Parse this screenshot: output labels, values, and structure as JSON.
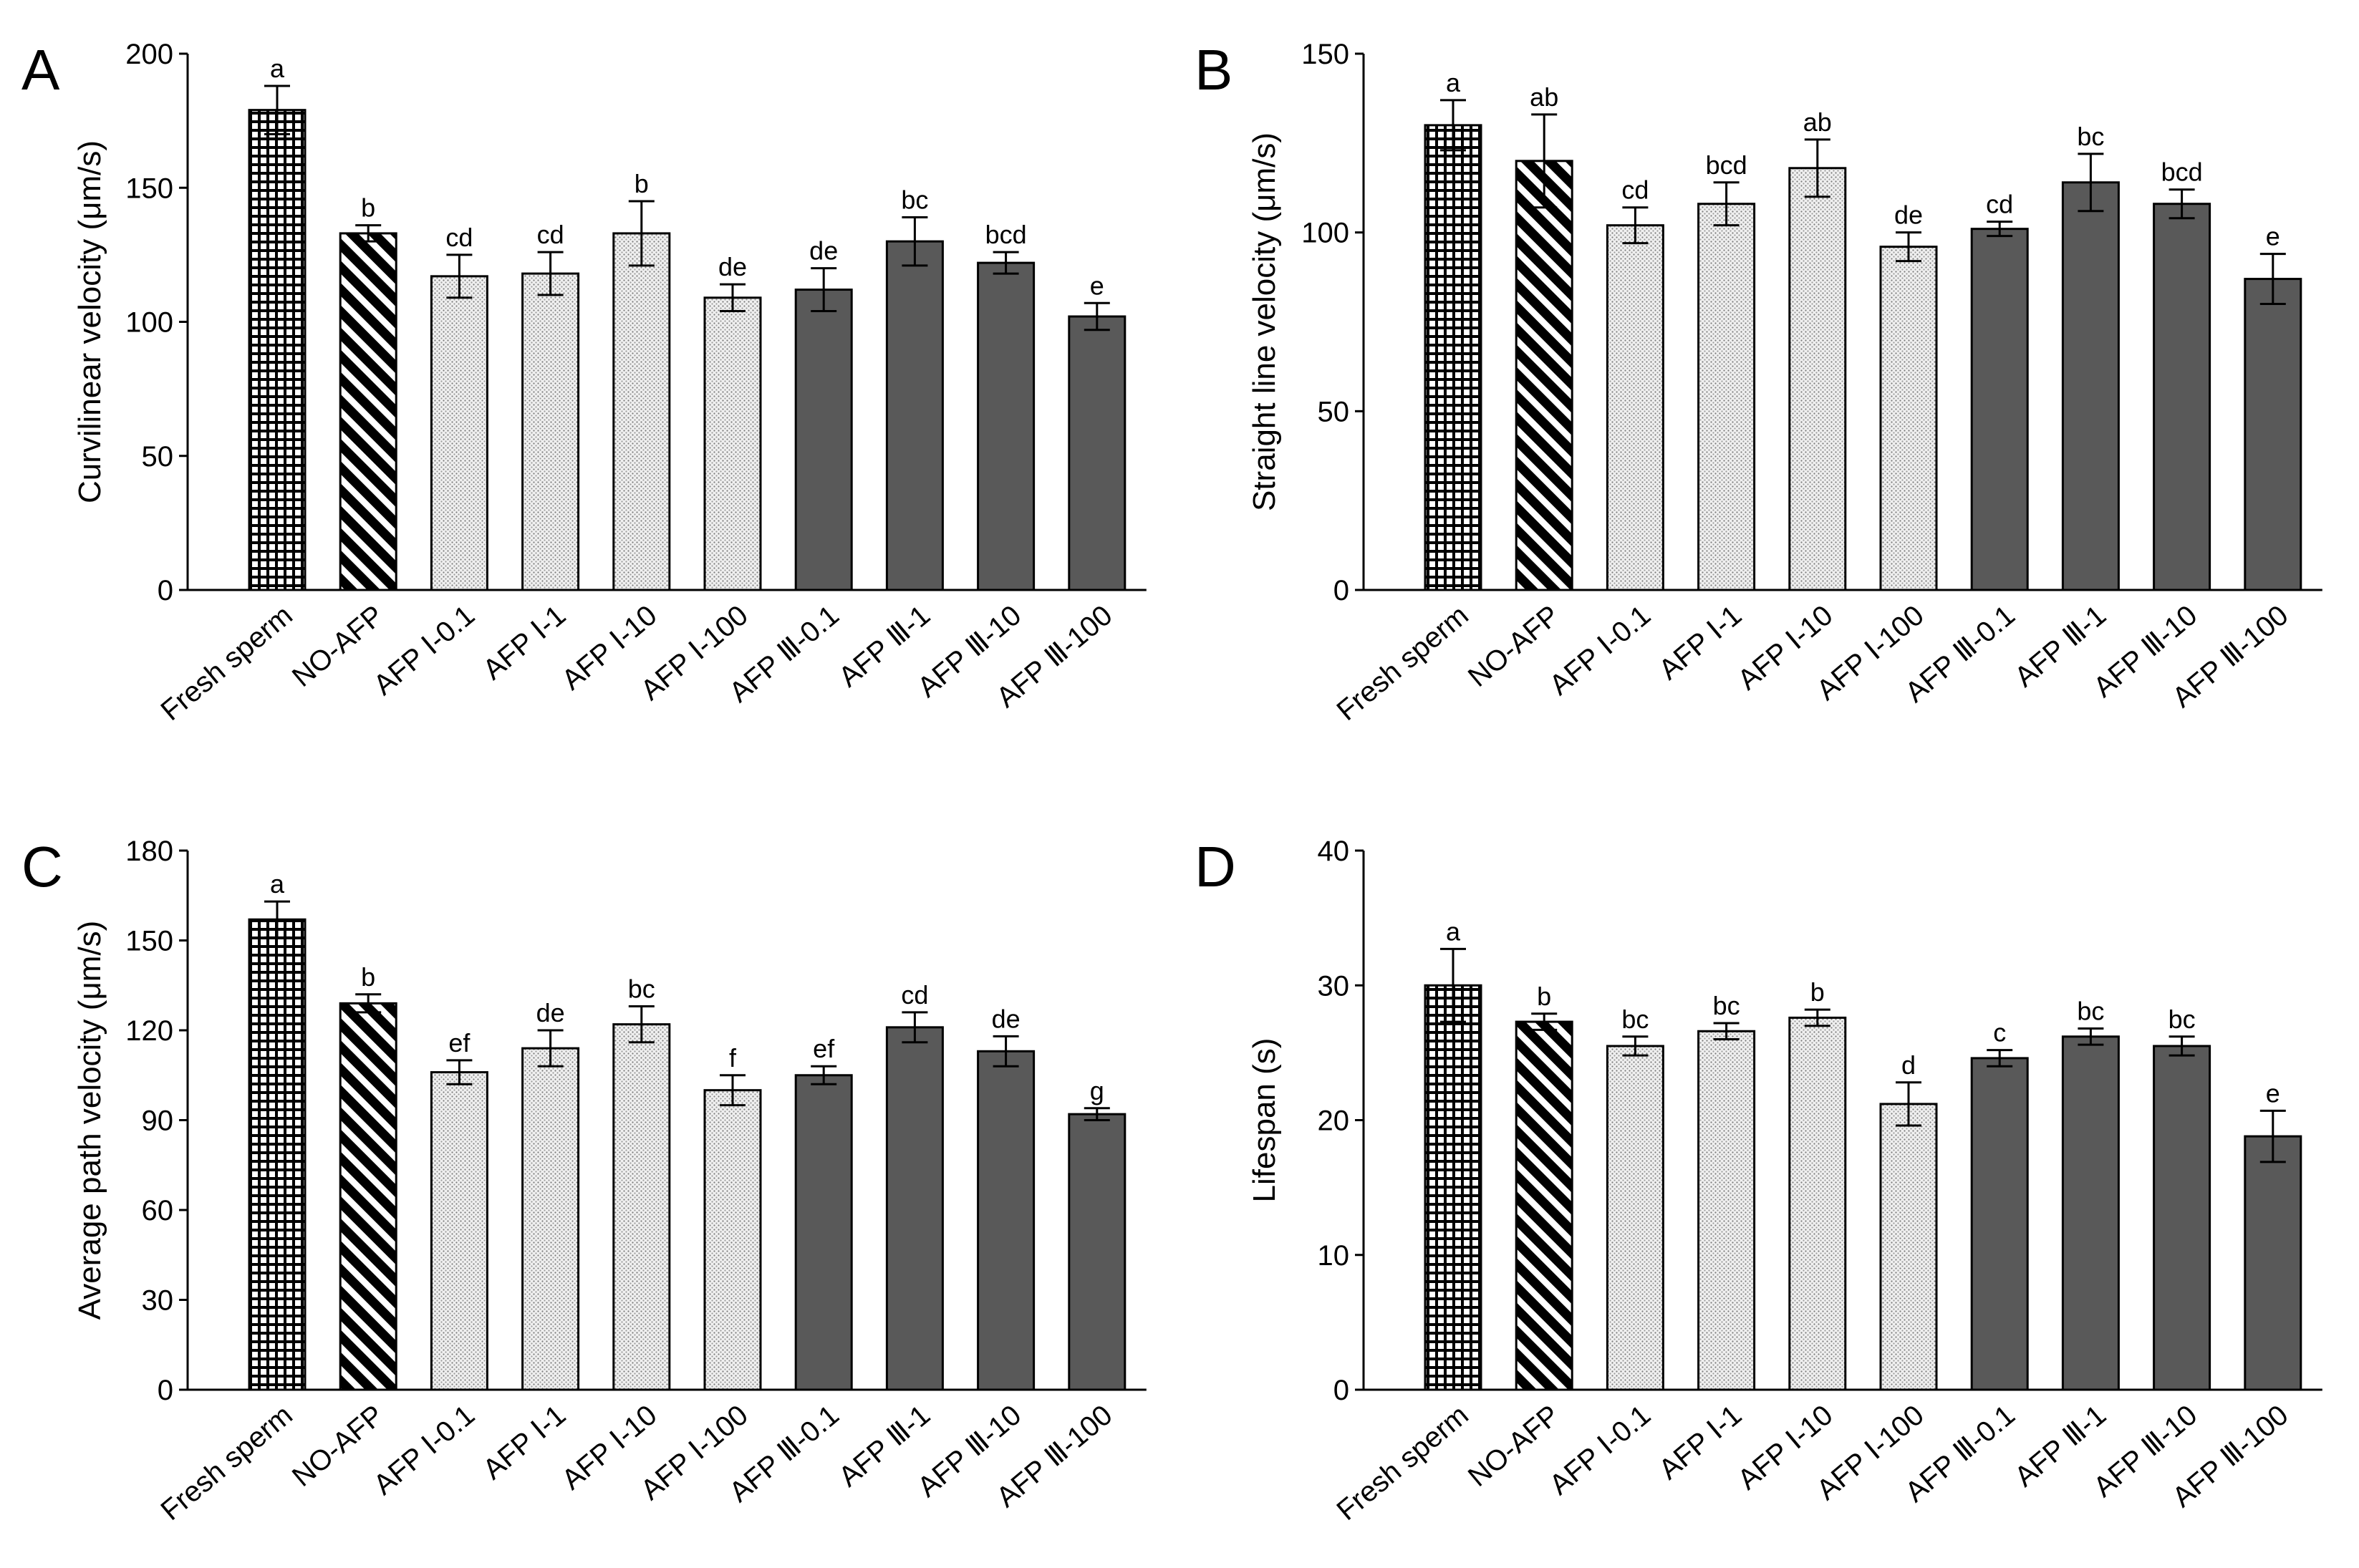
{
  "figure": {
    "description_free": true
  },
  "chart_data": [
    {
      "panel": "A",
      "type": "bar",
      "ylabel": "Curvilinear velocity (μm/s)",
      "ylim": [
        0,
        200
      ],
      "yticks": [
        0,
        50,
        100,
        150,
        200
      ],
      "categories": [
        "Fresh sperm",
        "NO-AFP",
        "AFP Ⅰ-0.1",
        "AFP Ⅰ-1",
        "AFP Ⅰ-10",
        "AFP Ⅰ-100",
        "AFP Ⅲ-0.1",
        "AFP Ⅲ-1",
        "AFP Ⅲ-10",
        "AFP Ⅲ-100"
      ],
      "values": [
        179,
        133,
        117,
        118,
        133,
        109,
        112,
        130,
        122,
        102
      ],
      "errors": [
        9,
        3,
        8,
        8,
        12,
        5,
        8,
        9,
        4,
        5
      ],
      "letters": [
        "a",
        "b",
        "cd",
        "cd",
        "b",
        "de",
        "de",
        "bc",
        "bcd",
        "e"
      ]
    },
    {
      "panel": "B",
      "type": "bar",
      "ylabel": "Straight line velocity (μm/s)",
      "ylim": [
        0,
        150
      ],
      "yticks": [
        0,
        50,
        100,
        150
      ],
      "categories": [
        "Fresh sperm",
        "NO-AFP",
        "AFP Ⅰ-0.1",
        "AFP Ⅰ-1",
        "AFP Ⅰ-10",
        "AFP Ⅰ-100",
        "AFP Ⅲ-0.1",
        "AFP Ⅲ-1",
        "AFP Ⅲ-10",
        "AFP Ⅲ-100"
      ],
      "values": [
        130,
        120,
        102,
        108,
        118,
        96,
        101,
        114,
        108,
        87
      ],
      "errors": [
        7,
        13,
        5,
        6,
        8,
        4,
        2,
        8,
        4,
        7
      ],
      "letters": [
        "a",
        "ab",
        "cd",
        "bcd",
        "ab",
        "de",
        "cd",
        "bc",
        "bcd",
        "e"
      ]
    },
    {
      "panel": "C",
      "type": "bar",
      "ylabel": "Average path velocity (μm/s)",
      "ylim": [
        0,
        180
      ],
      "yticks": [
        0,
        30,
        60,
        90,
        120,
        150,
        180
      ],
      "categories": [
        "Fresh sperm",
        "NO-AFP",
        "AFP Ⅰ-0.1",
        "AFP Ⅰ-1",
        "AFP Ⅰ-10",
        "AFP Ⅰ-100",
        "AFP Ⅲ-0.1",
        "AFP Ⅲ-1",
        "AFP Ⅲ-10",
        "AFP Ⅲ-100"
      ],
      "values": [
        157,
        129,
        106,
        114,
        122,
        100,
        105,
        121,
        113,
        92
      ],
      "errors": [
        6,
        3,
        4,
        6,
        6,
        5,
        3,
        5,
        5,
        2
      ],
      "letters": [
        "a",
        "b",
        "ef",
        "de",
        "bc",
        "f",
        "ef",
        "cd",
        "de",
        "g"
      ]
    },
    {
      "panel": "D",
      "type": "bar",
      "ylabel": "Lifespan (s)",
      "ylim": [
        0,
        40
      ],
      "yticks": [
        0,
        10,
        20,
        30,
        40
      ],
      "categories": [
        "Fresh sperm",
        "NO-AFP",
        "AFP Ⅰ-0.1",
        "AFP Ⅰ-1",
        "AFP Ⅰ-10",
        "AFP Ⅰ-100",
        "AFP Ⅲ-0.1",
        "AFP Ⅲ-1",
        "AFP Ⅲ-10",
        "AFP Ⅲ-100"
      ],
      "values": [
        30,
        27.3,
        25.5,
        26.6,
        27.6,
        21.2,
        24.6,
        26.2,
        25.5,
        18.8
      ],
      "errors": [
        2.7,
        0.6,
        0.7,
        0.6,
        0.6,
        1.6,
        0.6,
        0.6,
        0.7,
        1.9
      ],
      "letters": [
        "a",
        "b",
        "bc",
        "bc",
        "b",
        "d",
        "c",
        "bc",
        "bc",
        "e"
      ]
    }
  ],
  "fill_styles": [
    "grid",
    "diagonal",
    "dotted",
    "dotted",
    "dotted",
    "dotted",
    "solid",
    "solid",
    "solid",
    "solid"
  ],
  "colors": {
    "solid_bar": "#595959",
    "stroke": "#000000",
    "dotted_bg": "#f0f0f0",
    "dot": "#7a7a7a"
  }
}
